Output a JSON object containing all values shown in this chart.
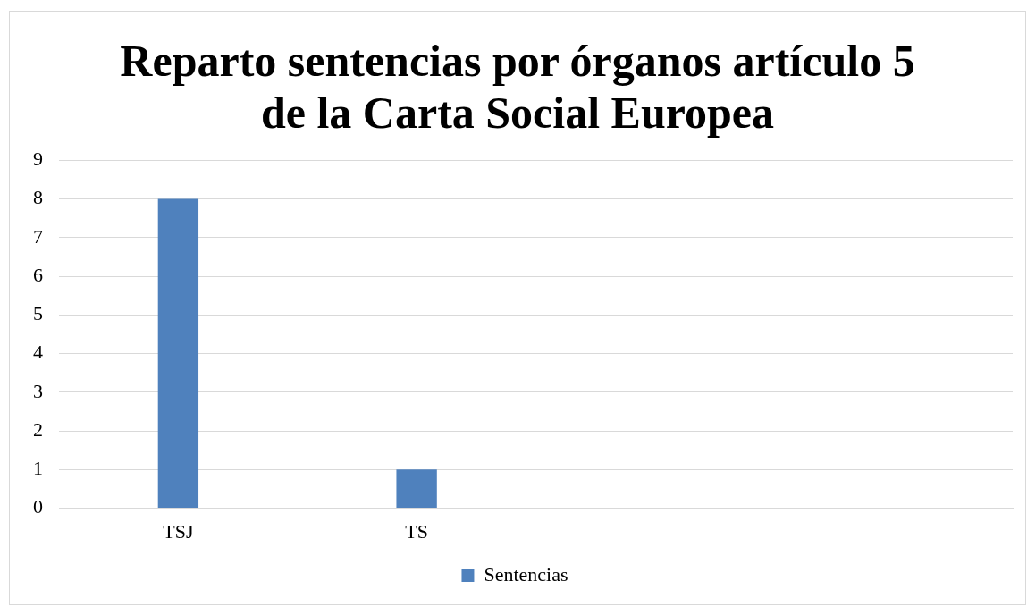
{
  "chart_data": {
    "type": "bar",
    "title": "Reparto sentencias por órganos artículo 5 de la Carta Social Europea",
    "categories": [
      "TSJ",
      "TS",
      null,
      null
    ],
    "series": [
      {
        "name": "Sentencias",
        "color": "#4f81bd",
        "values": [
          8,
          1,
          null,
          null
        ]
      }
    ],
    "ylim": [
      0,
      9
    ],
    "yticks": [
      0,
      1,
      2,
      3,
      4,
      5,
      6,
      7,
      8,
      9
    ],
    "grid": "y",
    "legend": "bottom"
  }
}
